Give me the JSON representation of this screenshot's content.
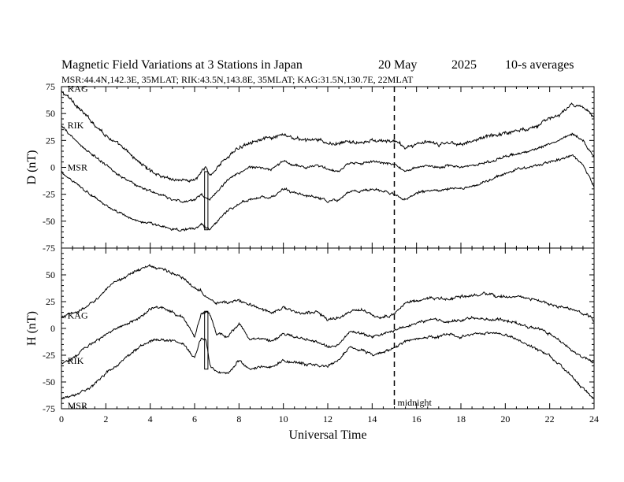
{
  "header": {
    "title_main": "Magnetic Field Variations at 3 Stations in Japan",
    "title_date": "20 May",
    "title_year": "2025",
    "title_avg": "10-s averages",
    "subtitle": "MSR:44.4N,142.3E, 35MLAT;  RIK:43.5N,143.8E, 35MLAT;  KAG:31.5N,130.7E, 22MLAT"
  },
  "chart_data": [
    {
      "type": "line",
      "panel": "D",
      "ylabel": "D (nT)",
      "ylim": [
        -75,
        75
      ],
      "yticks": [
        75,
        50,
        25,
        0,
        -25,
        -50,
        -75
      ],
      "yticklabels": [
        "75",
        "50",
        "25",
        "0",
        "-25",
        "-50",
        "-75"
      ],
      "xlim": [
        0,
        24
      ],
      "series": [
        {
          "name": "KAG",
          "label_x": 0.2,
          "label_y": 73,
          "x": [
            0,
            0.5,
            1,
            1.5,
            2,
            2.5,
            3,
            3.5,
            4,
            4.5,
            5,
            5.5,
            6,
            6.3,
            6.5,
            6.7,
            7,
            7.5,
            8,
            8.5,
            9,
            9.5,
            10,
            10.5,
            11,
            11.5,
            12,
            12.5,
            13,
            13.5,
            14,
            14.5,
            15,
            15.5,
            16,
            16.5,
            17,
            17.5,
            18,
            18.5,
            19,
            19.5,
            20,
            20.5,
            21,
            21.5,
            22,
            22.5,
            23,
            23.5,
            24
          ],
          "values": [
            70,
            62,
            50,
            40,
            30,
            22,
            14,
            5,
            -3,
            -8,
            -11,
            -12,
            -12,
            -5,
            0,
            -8,
            0,
            10,
            18,
            24,
            26,
            27,
            30,
            27,
            25,
            26,
            22,
            22,
            24,
            22,
            25,
            24,
            25,
            18,
            22,
            23,
            21,
            23,
            22,
            24,
            28,
            30,
            32,
            34,
            36,
            40,
            45,
            50,
            58,
            55,
            48
          ],
          "noise": 1.8
        },
        {
          "name": "RIK",
          "label_x": 0.2,
          "label_y": 39,
          "x": [
            0,
            0.5,
            1,
            1.5,
            2,
            2.5,
            3,
            3.5,
            4,
            4.5,
            5,
            5.5,
            6,
            6.3,
            6.5,
            6.7,
            7,
            7.5,
            8,
            8.5,
            9,
            9.5,
            10,
            10.5,
            11,
            11.5,
            12,
            12.5,
            13,
            13.5,
            14,
            14.5,
            15,
            15.5,
            16,
            16.5,
            17,
            17.5,
            18,
            18.5,
            19,
            19.5,
            20,
            20.5,
            21,
            21.5,
            22,
            22.5,
            23,
            23.5,
            24
          ],
          "values": [
            38,
            28,
            18,
            10,
            2,
            -6,
            -12,
            -18,
            -22,
            -26,
            -30,
            -32,
            -30,
            -25,
            -28,
            -30,
            -22,
            -12,
            -5,
            0,
            0,
            -2,
            6,
            2,
            0,
            2,
            -2,
            -4,
            4,
            4,
            5,
            4,
            3,
            -4,
            0,
            2,
            0,
            2,
            0,
            2,
            4,
            6,
            10,
            12,
            15,
            18,
            22,
            26,
            32,
            25,
            10
          ],
          "noise": 1.3
        },
        {
          "name": "MSR",
          "label_x": 0.2,
          "label_y": 0,
          "x": [
            0,
            0.5,
            1,
            1.5,
            2,
            2.5,
            3,
            3.5,
            4,
            4.5,
            5,
            5.5,
            6,
            6.3,
            6.5,
            6.7,
            7,
            7.5,
            8,
            8.5,
            9,
            9.5,
            10,
            10.5,
            11,
            11.5,
            12,
            12.5,
            13,
            13.5,
            14,
            14.5,
            15,
            15.5,
            16,
            16.5,
            17,
            17.5,
            18,
            18.5,
            19,
            19.5,
            20,
            20.5,
            21,
            21.5,
            22,
            22.5,
            23,
            23.5,
            24
          ],
          "values": [
            -5,
            -12,
            -20,
            -28,
            -35,
            -42,
            -46,
            -50,
            -52,
            -55,
            -57,
            -58,
            -57,
            -53,
            -55,
            -58,
            -50,
            -40,
            -34,
            -30,
            -28,
            -28,
            -20,
            -24,
            -26,
            -28,
            -32,
            -30,
            -22,
            -22,
            -20,
            -22,
            -25,
            -30,
            -24,
            -22,
            -22,
            -20,
            -20,
            -18,
            -14,
            -10,
            -6,
            -2,
            0,
            2,
            5,
            8,
            12,
            2,
            -18
          ],
          "noise": 1.3
        }
      ],
      "rectangle": {
        "x": [
          6.45,
          6.6
        ],
        "y": [
          -58,
          -4
        ]
      }
    },
    {
      "type": "line",
      "panel": "H",
      "ylabel": "H (nT)",
      "ylim": [
        -75,
        75
      ],
      "yticks": [
        75,
        50,
        25,
        0,
        -25,
        -50,
        -75
      ],
      "yticklabels": [
        "",
        "50",
        "25",
        "0",
        "-25",
        "-50",
        "-75"
      ],
      "xlim": [
        0,
        24
      ],
      "xticks": [
        0,
        2,
        4,
        6,
        8,
        10,
        12,
        14,
        16,
        18,
        20,
        22,
        24
      ],
      "xticklabels": [
        "0",
        "2",
        "4",
        "6",
        "8",
        "10",
        "12",
        "14",
        "16",
        "18",
        "20",
        "22",
        "24"
      ],
      "xlabel": "Universal Time",
      "series": [
        {
          "name": "KAG",
          "label_x": 0.2,
          "label_y": 12,
          "x": [
            0,
            0.5,
            1,
            1.5,
            2,
            2.5,
            3,
            3.5,
            4,
            4.5,
            5,
            5.5,
            6,
            6.3,
            6.5,
            6.7,
            7,
            7.5,
            8,
            8.5,
            9,
            9.5,
            10,
            10.5,
            11,
            11.5,
            12,
            12.5,
            13,
            13.5,
            14,
            14.5,
            15,
            15.5,
            16,
            16.5,
            17,
            17.5,
            18,
            18.5,
            19,
            19.5,
            20,
            20.5,
            21,
            21.5,
            22,
            22.5,
            23,
            23.5,
            24
          ],
          "values": [
            10,
            14,
            18,
            26,
            36,
            44,
            50,
            55,
            58,
            56,
            52,
            46,
            38,
            36,
            30,
            28,
            24,
            24,
            26,
            22,
            18,
            15,
            20,
            15,
            14,
            16,
            8,
            10,
            15,
            18,
            12,
            10,
            14,
            24,
            26,
            28,
            28,
            27,
            30,
            30,
            32,
            30,
            30,
            30,
            28,
            26,
            22,
            20,
            18,
            14,
            8
          ],
          "noise": 1.5
        },
        {
          "name": "RIK",
          "label_x": 0.2,
          "label_y": -30,
          "x": [
            0,
            0.5,
            1,
            1.5,
            2,
            2.5,
            3,
            3.5,
            4,
            4.5,
            5,
            5.5,
            6,
            6.3,
            6.5,
            6.7,
            7,
            7.5,
            8,
            8.5,
            9,
            9.5,
            10,
            10.5,
            11,
            11.5,
            12,
            12.5,
            13,
            13.5,
            14,
            14.5,
            15,
            15.5,
            16,
            16.5,
            17,
            17.5,
            18,
            18.5,
            19,
            19.5,
            20,
            20.5,
            21,
            21.5,
            22,
            22.5,
            23,
            23.5,
            24
          ],
          "values": [
            -32,
            -28,
            -20,
            -12,
            -6,
            0,
            5,
            10,
            18,
            20,
            15,
            10,
            -8,
            14,
            15,
            14,
            -5,
            -8,
            5,
            -10,
            -10,
            -12,
            -5,
            -8,
            -10,
            -12,
            -18,
            -15,
            -2,
            -5,
            -8,
            -5,
            -2,
            2,
            5,
            8,
            8,
            6,
            8,
            10,
            8,
            8,
            8,
            5,
            2,
            0,
            -5,
            -12,
            -20,
            -26,
            -32
          ],
          "noise": 1.4
        },
        {
          "name": "MSR",
          "label_x": 0.2,
          "label_y": -72,
          "x": [
            0,
            0.5,
            1,
            1.5,
            2,
            2.5,
            3,
            3.5,
            4,
            4.5,
            5,
            5.5,
            6,
            6.3,
            6.5,
            6.7,
            7,
            7.5,
            8,
            8.5,
            9,
            9.5,
            10,
            10.5,
            11,
            11.5,
            12,
            12.5,
            13,
            13.5,
            14,
            14.5,
            15,
            15.5,
            16,
            16.5,
            17,
            17.5,
            18,
            18.5,
            19,
            19.5,
            20,
            20.5,
            21,
            21.5,
            22,
            22.5,
            23,
            23.5,
            24
          ],
          "values": [
            -66,
            -62,
            -58,
            -52,
            -42,
            -34,
            -26,
            -18,
            -12,
            -10,
            -12,
            -15,
            -28,
            -8,
            -10,
            -35,
            -40,
            -42,
            -30,
            -38,
            -35,
            -36,
            -30,
            -32,
            -34,
            -34,
            -36,
            -30,
            -18,
            -20,
            -25,
            -22,
            -18,
            -12,
            -10,
            -8,
            -8,
            -5,
            -8,
            -5,
            -5,
            -4,
            -6,
            -10,
            -15,
            -20,
            -26,
            -35,
            -45,
            -56,
            -66
          ],
          "noise": 1.4
        }
      ],
      "rectangle": {
        "x": [
          6.45,
          6.6
        ],
        "y": [
          -38,
          16
        ]
      },
      "annotation": "midnight"
    }
  ],
  "midnight_x": 15
}
